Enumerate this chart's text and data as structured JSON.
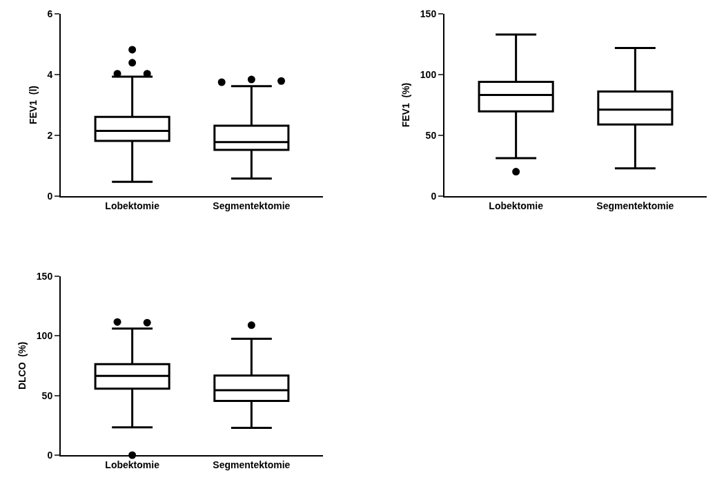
{
  "chart_data": [
    {
      "type": "box",
      "categories": [
        "Lobektomie",
        "Segmentektomie"
      ],
      "ylabel": "FEV1  (l)",
      "ylim": [
        0,
        6
      ],
      "yticks": [
        0,
        2,
        4,
        6
      ],
      "grid": false,
      "marker": "circle",
      "boxes": [
        {
          "low": 0.47,
          "q1": 1.82,
          "median": 2.15,
          "q3": 2.61,
          "high": 3.93,
          "outliers": [
            4.82,
            4.39,
            4.03,
            4.03
          ]
        },
        {
          "low": 0.58,
          "q1": 1.52,
          "median": 1.78,
          "q3": 2.32,
          "high": 3.62,
          "outliers": [
            3.75,
            3.84,
            3.79
          ]
        }
      ]
    },
    {
      "type": "box",
      "categories": [
        "Lobektomie",
        "Segmentektomie"
      ],
      "ylabel": "FEV1  (%)",
      "ylim": [
        0,
        150
      ],
      "yticks": [
        0,
        50,
        100,
        150
      ],
      "grid": false,
      "marker": "circle",
      "boxes": [
        {
          "low": 31.3,
          "q1": 69.8,
          "median": 83.2,
          "q3": 94.1,
          "high": 133,
          "outliers": [
            20.1
          ]
        },
        {
          "low": 22.9,
          "q1": 58.9,
          "median": 71.1,
          "q3": 86.1,
          "high": 121.9
        }
      ]
    },
    {
      "type": "box",
      "categories": [
        "Lobektomie",
        "Segmentektomie"
      ],
      "ylabel": "DLCO  (%)",
      "ylim": [
        0,
        150
      ],
      "yticks": [
        0,
        50,
        100,
        150
      ],
      "grid": false,
      "marker": "circle",
      "boxes": [
        {
          "low": 23.3,
          "q1": 55.8,
          "median": 66.4,
          "q3": 76.3,
          "high": 106.2,
          "outliers": [
            111.7,
            111.1,
            0
          ]
        },
        {
          "low": 22.9,
          "q1": 45.5,
          "median": 54.5,
          "q3": 66.7,
          "high": 97.6,
          "outliers": [
            109
          ]
        }
      ]
    }
  ]
}
